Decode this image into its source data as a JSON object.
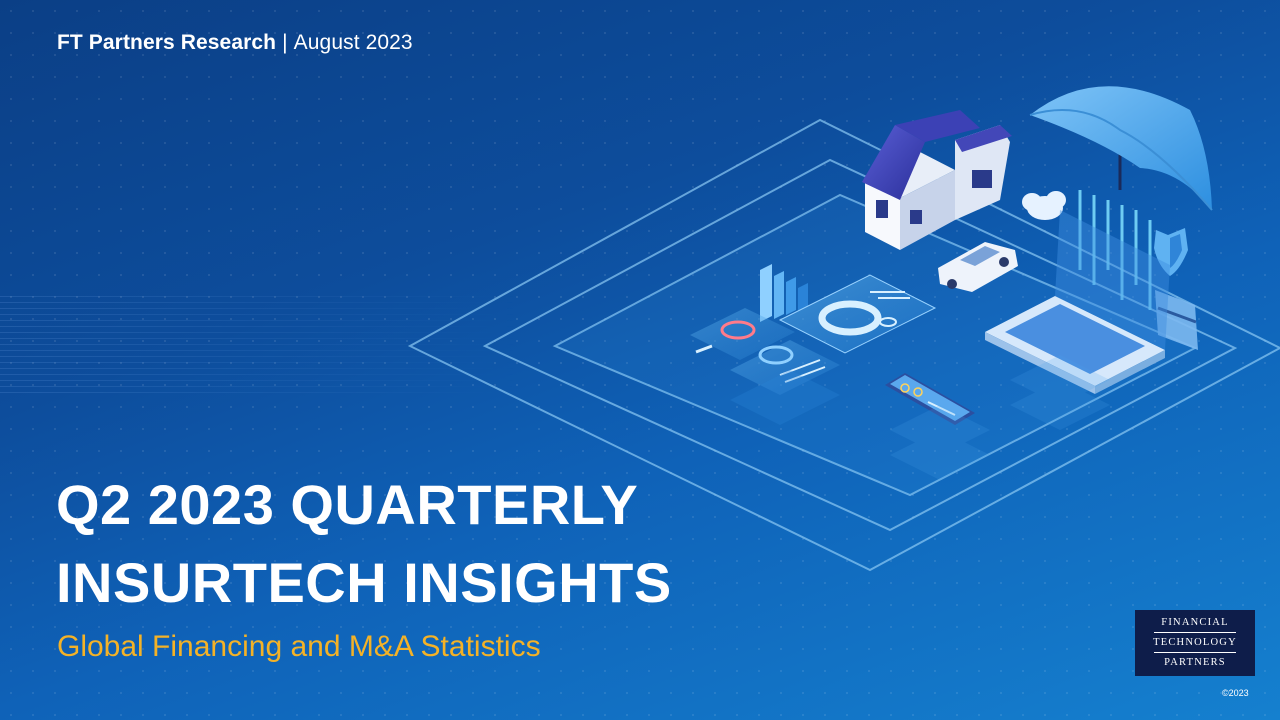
{
  "header": {
    "brand": "FT Partners Research",
    "separator": "|",
    "date": "August 2023"
  },
  "title": {
    "line1": "Q2 2023 QUARTERLY",
    "line2": "INSURTECH INSIGHTS"
  },
  "subtitle": "Global Financing and M&A Statistics",
  "logo": {
    "line1": "FINANCIAL",
    "line2": "TECHNOLOGY",
    "line3": "PARTNERS"
  },
  "copyright": "©2023",
  "colors": {
    "background_dark": "#0b3f86",
    "background_light": "#1580cf",
    "subtitle": "#f4b227",
    "logo_bg": "#0e1d4a"
  },
  "illustration": {
    "icons": [
      "house-icon",
      "car-icon",
      "umbrella-icon",
      "cloud-icon",
      "shield-icon",
      "laptop-icon",
      "phone-icon",
      "bar-chart-icon",
      "donut-chart-icon",
      "credit-card-icon"
    ]
  }
}
